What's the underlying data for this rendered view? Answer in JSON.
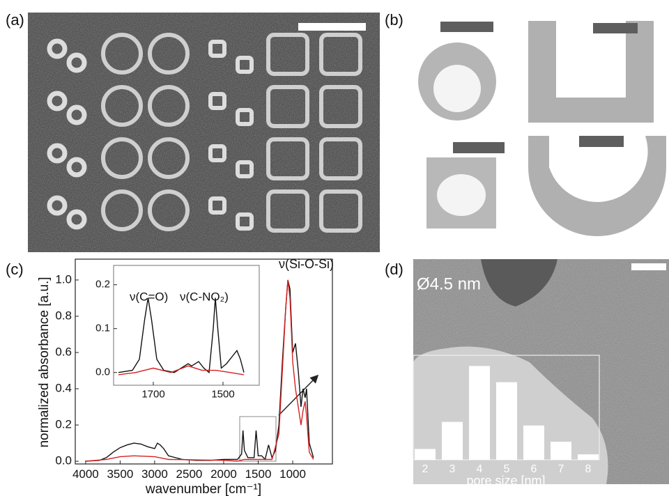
{
  "panel_labels": [
    "(a)",
    "(b)",
    "(c)",
    "(d)"
  ],
  "chart_data": [
    {
      "type": "line",
      "x_label": "wavenumber [cm⁻¹]",
      "y_label": "normalized absorbance [a.u.]",
      "annotation": "ν(Si-O-Si)",
      "xlim": [
        4150,
        425
      ],
      "ylim": [
        -0.015,
        1.115
      ],
      "xticks": [
        4000,
        3500,
        3000,
        2500,
        2000,
        1500,
        1000
      ],
      "yticks": [
        {
          "value": 0,
          "label": "0.0"
        },
        0.2,
        0.4,
        0.6,
        0.8,
        {
          "value": 1,
          "label": "1.0"
        }
      ],
      "series": [
        {
          "color": "#111111",
          "x": [
            4000,
            3800,
            3700,
            3600,
            3500,
            3400,
            3300,
            3200,
            3100,
            3000,
            2960,
            2920,
            2870,
            2800,
            2600,
            2400,
            2200,
            2000,
            1800,
            1740,
            1720,
            1700,
            1650,
            1600,
            1560,
            1530,
            1500,
            1450,
            1400,
            1350,
            1300,
            1250,
            1200,
            1150,
            1100,
            1070,
            1040,
            1000,
            960,
            920,
            880,
            850,
            820,
            800,
            760,
            700
          ],
          "values": [
            0.0,
            0.005,
            0.02,
            0.05,
            0.075,
            0.09,
            0.1,
            0.095,
            0.08,
            0.07,
            0.1,
            0.09,
            0.07,
            0.03,
            0.01,
            0.005,
            0.005,
            0.01,
            0.01,
            0.04,
            0.17,
            0.06,
            0.02,
            0.02,
            0.02,
            0.17,
            0.03,
            0.03,
            0.01,
            0.09,
            0.02,
            0.06,
            0.2,
            0.55,
            0.85,
            1.0,
            0.95,
            0.6,
            0.65,
            0.5,
            0.3,
            0.4,
            0.35,
            0.4,
            0.1,
            0.02
          ]
        },
        {
          "color": "#d62020",
          "x": [
            4000,
            3700,
            3500,
            3300,
            3000,
            2800,
            2000,
            1800,
            1700,
            1500,
            1300,
            1200,
            1150,
            1100,
            1070,
            1040,
            1000,
            960,
            920,
            880,
            850,
            820,
            800,
            760,
            700
          ],
          "values": [
            0.0,
            0.01,
            0.025,
            0.03,
            0.025,
            0.01,
            0.005,
            0.0,
            0.01,
            0.01,
            0.01,
            0.15,
            0.5,
            0.85,
            1.0,
            0.9,
            0.55,
            0.4,
            0.3,
            0.2,
            0.28,
            0.33,
            0.25,
            0.05,
            0.01
          ]
        }
      ]
    },
    {
      "type": "line",
      "annotations": [
        "ν(C=O)",
        "ν(C-NO₂)"
      ],
      "xlim": [
        1814,
        1396
      ],
      "ylim": [
        -0.029,
        0.244
      ],
      "xticks": [
        1700,
        1500
      ],
      "yticks": [
        {
          "value": 0,
          "label": "0.0"
        },
        0.1,
        0.2
      ],
      "series": [
        {
          "color": "#111111",
          "x": [
            1800,
            1760,
            1740,
            1725,
            1715,
            1705,
            1690,
            1670,
            1640,
            1620,
            1600,
            1590,
            1570,
            1555,
            1540,
            1528,
            1522,
            1515,
            1505,
            1490,
            1470,
            1460,
            1450,
            1440
          ],
          "values": [
            0.0,
            0.005,
            0.03,
            0.12,
            0.17,
            0.12,
            0.03,
            0.005,
            0.0,
            0.01,
            0.02,
            0.015,
            0.025,
            0.01,
            0.0,
            0.1,
            0.17,
            0.1,
            0.01,
            0.02,
            0.04,
            0.05,
            0.03,
            0.0
          ]
        },
        {
          "color": "#d62020",
          "x": [
            1800,
            1750,
            1700,
            1650,
            1600,
            1560,
            1520,
            1480,
            1440
          ],
          "values": [
            -0.005,
            0.0,
            0.01,
            0.0,
            0.015,
            0.005,
            0.005,
            0.0,
            -0.005
          ]
        }
      ]
    },
    {
      "type": "bar",
      "x_label": "pore size [nm]",
      "annotation": "Ø4.5 nm",
      "categories": [
        "2",
        "3",
        "4",
        "5",
        "6",
        "7",
        "8"
      ],
      "values": [
        0.06,
        0.21,
        0.52,
        0.43,
        0.19,
        0.1,
        0.03
      ],
      "color": "#ffffff",
      "ylim": [
        0,
        0.56
      ]
    }
  ]
}
